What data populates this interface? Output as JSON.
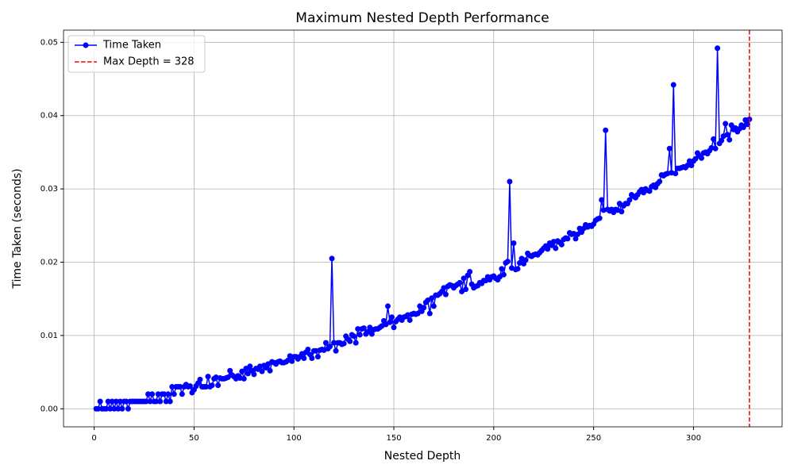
{
  "chart_data": {
    "type": "line",
    "title": "Maximum Nested Depth Performance",
    "xlabel": "Nested Depth",
    "ylabel": "Time Taken (seconds)",
    "xlim": [
      -15.35,
      344.35
    ],
    "ylim": [
      -0.00246,
      0.05166
    ],
    "xticks": [
      0,
      50,
      100,
      150,
      200,
      250,
      300
    ],
    "yticks": [
      {
        "value": 0,
        "label": "0.00"
      },
      {
        "value": 0.01,
        "label": "0.01"
      },
      {
        "value": 0.02,
        "label": "0.02"
      },
      {
        "value": 0.03,
        "label": "0.03"
      },
      {
        "value": 0.04,
        "label": "0.04"
      },
      {
        "value": 0.05,
        "label": "0.05"
      }
    ],
    "grid": true,
    "legend": "upper left",
    "x": [
      1,
      2,
      3,
      4,
      5,
      6,
      7,
      8,
      9,
      10,
      11,
      12,
      13,
      14,
      15,
      16,
      17,
      18,
      19,
      20,
      21,
      22,
      23,
      24,
      25,
      26,
      27,
      28,
      29,
      30,
      31,
      32,
      33,
      34,
      35,
      36,
      37,
      38,
      39,
      40,
      41,
      42,
      43,
      44,
      45,
      46,
      47,
      48,
      49,
      50,
      51,
      52,
      53,
      54,
      55,
      56,
      57,
      58,
      59,
      60,
      61,
      62,
      63,
      64,
      65,
      66,
      67,
      68,
      69,
      70,
      71,
      72,
      73,
      74,
      75,
      76,
      77,
      78,
      79,
      80,
      81,
      82,
      83,
      84,
      85,
      86,
      87,
      88,
      89,
      90,
      91,
      92,
      93,
      94,
      95,
      96,
      97,
      98,
      99,
      100,
      101,
      102,
      103,
      104,
      105,
      106,
      107,
      108,
      109,
      110,
      111,
      112,
      113,
      114,
      115,
      116,
      117,
      118,
      119,
      120,
      121,
      122,
      123,
      124,
      125,
      126,
      127,
      128,
      129,
      130,
      131,
      132,
      133,
      134,
      135,
      136,
      137,
      138,
      139,
      140,
      141,
      142,
      143,
      144,
      145,
      146,
      147,
      148,
      149,
      150,
      151,
      152,
      153,
      154,
      155,
      156,
      157,
      158,
      159,
      160,
      161,
      162,
      163,
      164,
      165,
      166,
      167,
      168,
      169,
      170,
      171,
      172,
      173,
      174,
      175,
      176,
      177,
      178,
      179,
      180,
      181,
      182,
      183,
      184,
      185,
      186,
      187,
      188,
      189,
      190,
      191,
      192,
      193,
      194,
      195,
      196,
      197,
      198,
      199,
      200,
      201,
      202,
      203,
      204,
      205,
      206,
      207,
      208,
      209,
      210,
      211,
      212,
      213,
      214,
      215,
      216,
      217,
      218,
      219,
      220,
      221,
      222,
      223,
      224,
      225,
      226,
      227,
      228,
      229,
      230,
      231,
      232,
      233,
      234,
      235,
      236,
      237,
      238,
      239,
      240,
      241,
      242,
      243,
      244,
      245,
      246,
      247,
      248,
      249,
      250,
      251,
      252,
      253,
      254,
      255,
      256,
      257,
      258,
      259,
      260,
      261,
      262,
      263,
      264,
      265,
      266,
      267,
      268,
      269,
      270,
      271,
      272,
      273,
      274,
      275,
      276,
      277,
      278,
      279,
      280,
      281,
      282,
      283,
      284,
      285,
      286,
      287,
      288,
      289,
      290,
      291,
      292,
      293,
      294,
      295,
      296,
      297,
      298,
      299,
      300,
      301,
      302,
      303,
      304,
      305,
      306,
      307,
      308,
      309,
      310,
      311,
      312,
      313,
      314,
      315,
      316,
      317,
      318,
      319,
      320,
      321,
      322,
      323,
      324,
      325,
      326,
      327,
      328
    ],
    "series": [
      {
        "name": "Time Taken",
        "color": "#0000ff",
        "values": [
          0,
          0,
          0.001,
          0,
          0,
          0,
          0.001,
          0,
          0.001,
          0,
          0.001,
          0,
          0.001,
          0,
          0.001,
          0.001,
          0,
          0.001,
          0.001,
          0.001,
          0.001,
          0.001,
          0.001,
          0.001,
          0.001,
          0.001,
          0.002,
          0.001,
          0.002,
          0.001,
          0.001,
          0.002,
          0.001,
          0.002,
          0.002,
          0.001,
          0.002,
          0.001,
          0.003,
          0.002,
          0.003,
          0.003,
          0.003,
          0.002,
          0.003,
          0.0033,
          0.003,
          0.0031,
          0.0022,
          0.0026,
          0.0031,
          0.0035,
          0.004,
          0.003,
          0.003,
          0.003,
          0.0044,
          0.003,
          0.0032,
          0.0041,
          0.0043,
          0.0032,
          0.0042,
          0.0041,
          0.0041,
          0.0042,
          0.0043,
          0.0052,
          0.0046,
          0.0044,
          0.0041,
          0.0045,
          0.0042,
          0.0051,
          0.0041,
          0.0055,
          0.0048,
          0.0058,
          0.0052,
          0.0047,
          0.0055,
          0.0054,
          0.0058,
          0.0051,
          0.0059,
          0.0056,
          0.0061,
          0.0052,
          0.0064,
          0.0063,
          0.0061,
          0.0064,
          0.0065,
          0.0063,
          0.0063,
          0.0064,
          0.0066,
          0.0072,
          0.0065,
          0.0071,
          0.0071,
          0.0068,
          0.0071,
          0.0075,
          0.0069,
          0.0077,
          0.0081,
          0.0074,
          0.0069,
          0.0079,
          0.0079,
          0.0071,
          0.008,
          0.0081,
          0.008,
          0.009,
          0.0082,
          0.0085,
          0.0205,
          0.009,
          0.0079,
          0.009,
          0.009,
          0.0088,
          0.0089,
          0.0099,
          0.0095,
          0.0092,
          0.0101,
          0.0099,
          0.009,
          0.0109,
          0.0101,
          0.0109,
          0.011,
          0.0102,
          0.0105,
          0.0111,
          0.0102,
          0.0108,
          0.0109,
          0.0109,
          0.0111,
          0.0113,
          0.012,
          0.0115,
          0.014,
          0.0118,
          0.0125,
          0.0111,
          0.0119,
          0.0122,
          0.0125,
          0.0121,
          0.0125,
          0.0126,
          0.0128,
          0.0121,
          0.0129,
          0.013,
          0.0129,
          0.013,
          0.014,
          0.0133,
          0.0138,
          0.0145,
          0.0148,
          0.013,
          0.0151,
          0.014,
          0.0155,
          0.0155,
          0.0157,
          0.016,
          0.0165,
          0.0156,
          0.0167,
          0.0169,
          0.0168,
          0.0165,
          0.0168,
          0.017,
          0.0172,
          0.016,
          0.0178,
          0.0163,
          0.0182,
          0.0187,
          0.017,
          0.0165,
          0.0167,
          0.0168,
          0.0172,
          0.0171,
          0.0175,
          0.0175,
          0.018,
          0.0176,
          0.018,
          0.0181,
          0.0178,
          0.0176,
          0.018,
          0.0191,
          0.0183,
          0.0199,
          0.0201,
          0.031,
          0.0192,
          0.0226,
          0.019,
          0.0191,
          0.0199,
          0.0205,
          0.0198,
          0.0203,
          0.0212,
          0.0209,
          0.0208,
          0.021,
          0.0211,
          0.021,
          0.0213,
          0.0216,
          0.0219,
          0.0222,
          0.0218,
          0.0226,
          0.0223,
          0.0228,
          0.0219,
          0.0229,
          0.0227,
          0.0224,
          0.0231,
          0.0233,
          0.0232,
          0.024,
          0.0238,
          0.0239,
          0.0232,
          0.0238,
          0.0246,
          0.0241,
          0.0246,
          0.0251,
          0.0248,
          0.025,
          0.0249,
          0.0252,
          0.0257,
          0.0259,
          0.026,
          0.0285,
          0.0271,
          0.038,
          0.0272,
          0.027,
          0.0272,
          0.0268,
          0.0272,
          0.0271,
          0.028,
          0.0269,
          0.0277,
          0.028,
          0.028,
          0.0285,
          0.0292,
          0.029,
          0.0288,
          0.0292,
          0.0296,
          0.0299,
          0.0295,
          0.03,
          0.0298,
          0.0297,
          0.0303,
          0.0305,
          0.0302,
          0.0307,
          0.031,
          0.0319,
          0.0318,
          0.032,
          0.0321,
          0.0355,
          0.0322,
          0.0442,
          0.0321,
          0.0328,
          0.0328,
          0.0329,
          0.033,
          0.0329,
          0.0332,
          0.0338,
          0.0332,
          0.0338,
          0.0341,
          0.0349,
          0.0345,
          0.0342,
          0.0349,
          0.035,
          0.0348,
          0.0352,
          0.0356,
          0.0368,
          0.0355,
          0.0492,
          0.0362,
          0.0366,
          0.0372,
          0.0389,
          0.0374,
          0.0367,
          0.0387,
          0.0381,
          0.0383,
          0.0378,
          0.0382,
          0.0387,
          0.0384,
          0.0394,
          0.0388,
          0.0395
        ]
      }
    ],
    "vline": {
      "value": 328,
      "name": "Max Depth = 328",
      "color": "#ff0000"
    }
  }
}
